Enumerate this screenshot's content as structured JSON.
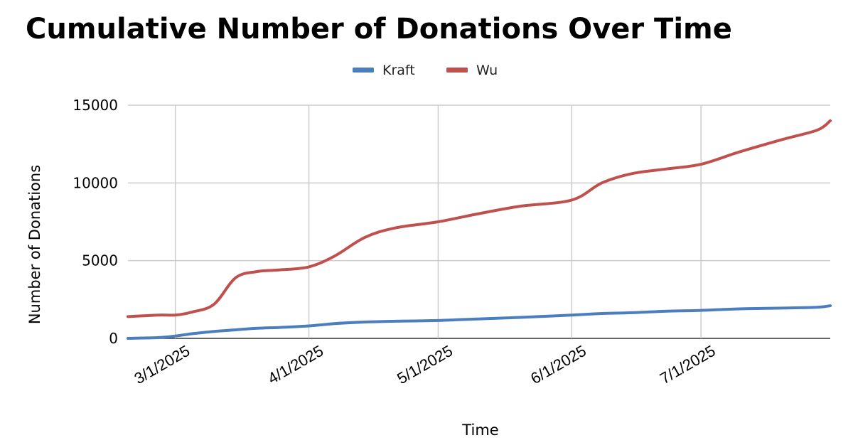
{
  "chart_data": {
    "type": "line",
    "title": "Cumulative Number of Donations Over Time",
    "xlabel": "Time",
    "ylabel": "Number of Donations",
    "ylim": [
      0,
      15000
    ],
    "yticks": [
      "0",
      "5000",
      "10000",
      "15000"
    ],
    "xticks": [
      "3/1/2025",
      "4/1/2025",
      "5/1/2025",
      "6/1/2025",
      "7/1/2025"
    ],
    "xlim": [
      "2025-02-18",
      "2025-07-31"
    ],
    "grid": true,
    "legend_position": "top-center",
    "x": [
      "2025-02-18",
      "2025-02-25",
      "2025-03-01",
      "2025-03-05",
      "2025-03-10",
      "2025-03-15",
      "2025-03-20",
      "2025-03-25",
      "2025-04-01",
      "2025-04-07",
      "2025-04-14",
      "2025-04-21",
      "2025-05-01",
      "2025-05-10",
      "2025-05-20",
      "2025-06-01",
      "2025-06-08",
      "2025-06-15",
      "2025-06-23",
      "2025-07-01",
      "2025-07-10",
      "2025-07-20",
      "2025-07-28",
      "2025-07-31"
    ],
    "series": [
      {
        "name": "Kraft",
        "color": "#4a7ebf",
        "values": [
          0,
          50,
          150,
          300,
          450,
          550,
          650,
          700,
          800,
          950,
          1050,
          1100,
          1150,
          1250,
          1350,
          1500,
          1600,
          1650,
          1750,
          1800,
          1900,
          1950,
          2000,
          2100
        ]
      },
      {
        "name": "Wu",
        "color": "#c0504d",
        "values": [
          1400,
          1500,
          1500,
          1700,
          2200,
          3900,
          4300,
          4400,
          4600,
          5300,
          6500,
          7100,
          7500,
          8000,
          8500,
          8900,
          10000,
          10600,
          10900,
          11200,
          12000,
          12800,
          13400,
          14000
        ]
      }
    ]
  }
}
